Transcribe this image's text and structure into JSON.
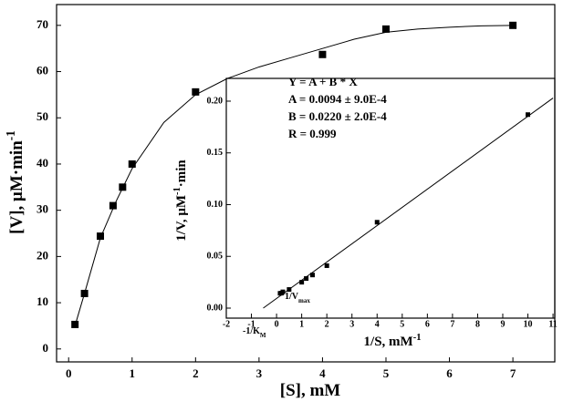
{
  "chart_data": [
    {
      "type": "scatter",
      "xlabel": [
        {
          "text": "[S], mM"
        }
      ],
      "ylabel": [
        {
          "text": "[V], μM·min"
        },
        {
          "text": "-1",
          "script": "sup"
        }
      ],
      "xlim": [
        -0.19,
        7.66
      ],
      "ylim": [
        -2.8,
        74.5
      ],
      "xticks": [
        0,
        1,
        2,
        3,
        4,
        5,
        6,
        7
      ],
      "yticks": [
        0,
        10,
        20,
        30,
        40,
        50,
        60,
        70
      ],
      "series": [
        {
          "mode": "markers",
          "color": "#000000",
          "x": [
            0.1,
            0.25,
            0.5,
            0.7,
            0.85,
            1,
            2,
            4,
            5,
            7
          ],
          "values": [
            5.3,
            12,
            24.4,
            31,
            35,
            40,
            55.6,
            63.7,
            69.2,
            70
          ]
        },
        {
          "mode": "line",
          "color": "#000000",
          "x": [
            0.1,
            0.25,
            0.5,
            0.75,
            1,
            1.5,
            2,
            2.5,
            3,
            3.5,
            4,
            4.5,
            5,
            5.5,
            6,
            6.5,
            7
          ],
          "values": [
            5,
            12,
            24,
            32,
            39,
            49,
            55,
            58.5,
            61,
            63,
            65,
            67,
            68.5,
            69.2,
            69.6,
            69.9,
            70
          ]
        }
      ]
    },
    {
      "type": "scatter",
      "xlabel": [
        {
          "text": "1/S, mM"
        },
        {
          "text": "-1",
          "script": "sup"
        }
      ],
      "ylabel": [
        {
          "text": "1/V, μM"
        },
        {
          "text": "-1",
          "script": "sup"
        },
        {
          "text": "·min"
        }
      ],
      "xlim": [
        -2,
        11.07
      ],
      "ylim": [
        -0.0097,
        0.222
      ],
      "xticks": [
        -2,
        -1,
        0,
        1,
        2,
        3,
        4,
        5,
        6,
        7,
        8,
        9,
        10,
        11
      ],
      "yticks": [
        {
          "value": 0,
          "label": "0.00"
        },
        0.05,
        {
          "value": 0.1,
          "label": "0.10"
        },
        0.15,
        {
          "value": 0.2,
          "label": "0.20"
        }
      ],
      "annotations": [
        [
          {
            "text": "Y = A + B * X"
          }
        ],
        [
          {
            "text": "A =  0.0094 ± 9.0E-4"
          }
        ],
        [
          {
            "text": "B =  0.0220 ± 2.0E-4"
          }
        ],
        [
          {
            "text": "R =  0.999"
          }
        ],
        [
          {
            "text": "1/V"
          },
          {
            "text": "max",
            "script": "sub"
          }
        ],
        [
          {
            "text": "-1/K"
          },
          {
            "text": "M",
            "script": "sub"
          }
        ]
      ],
      "series": [
        {
          "mode": "markers",
          "color": "#000000",
          "x": [
            0.14,
            0.2,
            0.25,
            0.5,
            1,
            1.18,
            1.43,
            2,
            4,
            10
          ],
          "values": [
            0.0143,
            0.0145,
            0.0157,
            0.018,
            0.025,
            0.0286,
            0.032,
            0.041,
            0.083,
            0.187
          ]
        },
        {
          "mode": "line",
          "color": "#000000",
          "x": [
            -0.53,
            11
          ],
          "values": [
            0,
            0.203
          ]
        }
      ]
    }
  ]
}
